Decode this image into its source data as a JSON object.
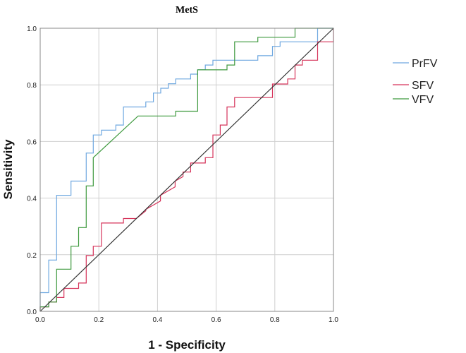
{
  "chart_data": {
    "type": "line",
    "title": "MetS",
    "xlabel": "1 - Specificity",
    "ylabel": "Sensitivity",
    "xlim": [
      0,
      1
    ],
    "ylim": [
      0,
      1
    ],
    "xticks": [
      "0.0",
      "0.2",
      "0.4",
      "0.6",
      "0.8",
      "1.0"
    ],
    "yticks": [
      "0.0",
      "0.2",
      "0.4",
      "0.6",
      "0.8",
      "1.0"
    ],
    "grid": true,
    "legend_position": "right",
    "reference_line": {
      "x": [
        0,
        1
      ],
      "y": [
        0,
        1
      ],
      "color": "#333333"
    },
    "series": [
      {
        "name": "PrFV",
        "color": "#6fa8e0",
        "x": [
          0,
          0,
          0.029,
          0.029,
          0.056,
          0.056,
          0.105,
          0.105,
          0.157,
          0.157,
          0.181,
          0.181,
          0.209,
          0.209,
          0.258,
          0.258,
          0.284,
          0.284,
          0.36,
          0.36,
          0.386,
          0.386,
          0.411,
          0.411,
          0.437,
          0.437,
          0.462,
          0.462,
          0.513,
          0.513,
          0.537,
          0.537,
          0.563,
          0.563,
          0.589,
          0.589,
          0.742,
          0.742,
          0.792,
          0.792,
          0.818,
          0.818,
          0.946,
          0.946,
          1
        ],
        "y": [
          0,
          0.066,
          0.066,
          0.181,
          0.181,
          0.41,
          0.41,
          0.46,
          0.46,
          0.559,
          0.559,
          0.623,
          0.623,
          0.64,
          0.64,
          0.658,
          0.658,
          0.722,
          0.722,
          0.74,
          0.74,
          0.771,
          0.771,
          0.788,
          0.788,
          0.804,
          0.804,
          0.821,
          0.821,
          0.838,
          0.838,
          0.853,
          0.853,
          0.87,
          0.87,
          0.887,
          0.887,
          0.903,
          0.903,
          0.936,
          0.936,
          0.952,
          0.952,
          1,
          1
        ]
      },
      {
        "name": "SFV",
        "color": "#d6335a",
        "x": [
          0,
          0,
          0.029,
          0.029,
          0.056,
          0.056,
          0.081,
          0.081,
          0.131,
          0.131,
          0.157,
          0.157,
          0.181,
          0.181,
          0.209,
          0.209,
          0.284,
          0.284,
          0.328,
          0.36,
          0.36,
          0.41,
          0.41,
          0.46,
          0.46,
          0.487,
          0.487,
          0.513,
          0.513,
          0.563,
          0.563,
          0.589,
          0.589,
          0.614,
          0.614,
          0.637,
          0.637,
          0.663,
          0.663,
          0.792,
          0.792,
          0.844,
          0.844,
          0.869,
          0.869,
          0.894,
          0.894,
          0.946,
          0.946,
          1,
          1
        ],
        "y": [
          0,
          0.016,
          0.016,
          0.033,
          0.033,
          0.049,
          0.049,
          0.081,
          0.081,
          0.1,
          0.1,
          0.197,
          0.197,
          0.23,
          0.23,
          0.312,
          0.312,
          0.328,
          0.328,
          0.355,
          0.36,
          0.39,
          0.41,
          0.44,
          0.46,
          0.476,
          0.492,
          0.492,
          0.524,
          0.524,
          0.543,
          0.543,
          0.623,
          0.623,
          0.658,
          0.658,
          0.722,
          0.722,
          0.755,
          0.755,
          0.803,
          0.803,
          0.821,
          0.821,
          0.87,
          0.87,
          0.887,
          0.887,
          0.952,
          0.952,
          1
        ]
      },
      {
        "name": "VFV",
        "color": "#3f9a3f",
        "x": [
          0,
          0,
          0.029,
          0.029,
          0.056,
          0.056,
          0.105,
          0.105,
          0.131,
          0.131,
          0.157,
          0.157,
          0.181,
          0.181,
          0.334,
          0.462,
          0.462,
          0.537,
          0.537,
          0.637,
          0.637,
          0.663,
          0.663,
          0.742,
          0.742,
          0.869,
          0.869,
          1
        ],
        "y": [
          0,
          0.016,
          0.016,
          0.033,
          0.033,
          0.149,
          0.149,
          0.23,
          0.23,
          0.296,
          0.296,
          0.443,
          0.443,
          0.543,
          0.69,
          0.69,
          0.707,
          0.707,
          0.853,
          0.853,
          0.87,
          0.87,
          0.952,
          0.952,
          0.968,
          0.968,
          1,
          1
        ]
      }
    ]
  }
}
